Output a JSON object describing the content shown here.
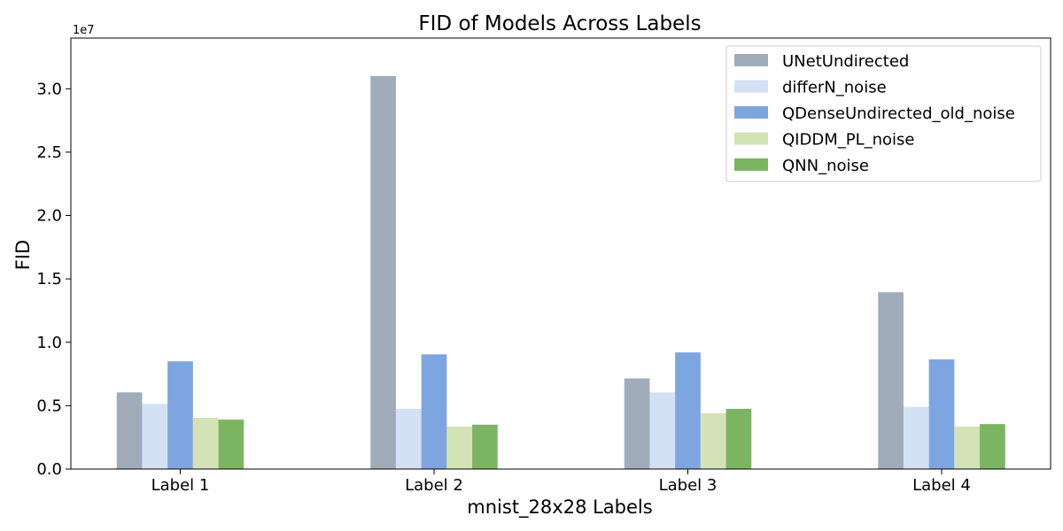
{
  "chart_data": {
    "type": "bar",
    "title": "FID of Models Across Labels",
    "xlabel": "mnist_28x28 Labels",
    "ylabel": "FID",
    "y_scale_label": "1e7",
    "categories": [
      "Label 1",
      "Label 2",
      "Label 3",
      "Label 4"
    ],
    "ylim": [
      0,
      34000000
    ],
    "yticks": [
      0,
      5000000,
      10000000,
      15000000,
      20000000,
      25000000,
      30000000
    ],
    "ytick_labels": [
      "0.0",
      "0.5",
      "1.0",
      "1.5",
      "2.0",
      "2.5",
      "3.0"
    ],
    "legend_position": "top-right",
    "grid": false,
    "series": [
      {
        "name": "UNetUndirected",
        "color": "#a0acba",
        "values": [
          6050000,
          31000000,
          7150000,
          13950000
        ]
      },
      {
        "name": "differN_noise",
        "color": "#d4e1f4",
        "values": [
          5150000,
          4750000,
          6050000,
          4900000
        ]
      },
      {
        "name": "QDenseUndirected_old_noise",
        "color": "#7da5e0",
        "values": [
          8500000,
          9050000,
          9200000,
          8650000
        ]
      },
      {
        "name": "QIDDM_PL_noise",
        "color": "#d3e3b6",
        "values": [
          4050000,
          3350000,
          4400000,
          3350000
        ]
      },
      {
        "name": "QNN_noise",
        "color": "#7cb562",
        "values": [
          3900000,
          3500000,
          4750000,
          3550000
        ]
      }
    ]
  }
}
